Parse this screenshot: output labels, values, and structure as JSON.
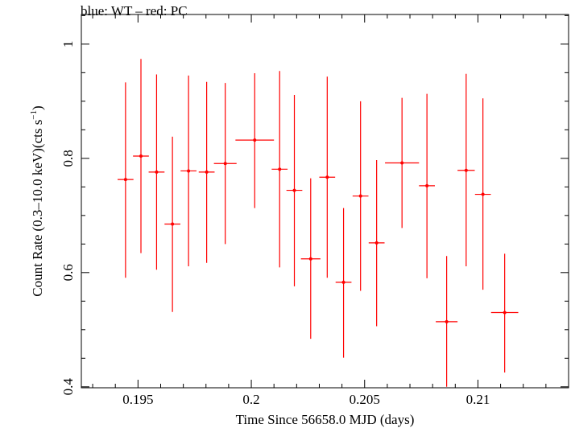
{
  "chart_data": {
    "type": "scatter",
    "title": "blue: WT – red: PC",
    "xlabel": "Time Since 56658.0 MJD (days)",
    "ylabel_main": "Count Rate (0.3–10.0 keV)(cts s",
    "ylabel_exp": "−1",
    "ylabel_tail": ")",
    "xlim": [
      0.1925,
      0.214
    ],
    "ylim": [
      0.3983,
      1.0519
    ],
    "x_major_ticks": [
      0.195,
      0.2,
      0.205,
      0.21
    ],
    "x_tick_labels": [
      "0.195",
      "0.2",
      "0.205",
      "0.21"
    ],
    "x_minor_step": 0.001,
    "y_major_ticks": [
      0.4,
      0.6,
      0.8,
      1.0
    ],
    "y_tick_labels": [
      "0.4",
      "0.6",
      "0.8",
      "1"
    ],
    "y_minor_step": 0.05,
    "grid": false,
    "series": [
      {
        "color": "#ff0000",
        "points": [
          {
            "x": 0.19445,
            "y": 0.763,
            "xerr": 0.00035,
            "ylo": 0.591,
            "yhi": 0.933
          },
          {
            "x": 0.19513,
            "y": 0.804,
            "xerr": 0.00035,
            "ylo": 0.634,
            "yhi": 0.974
          },
          {
            "x": 0.19582,
            "y": 0.776,
            "xerr": 0.00035,
            "ylo": 0.605,
            "yhi": 0.947
          },
          {
            "x": 0.19652,
            "y": 0.685,
            "xerr": 0.00035,
            "ylo": 0.531,
            "yhi": 0.838
          },
          {
            "x": 0.19723,
            "y": 0.778,
            "xerr": 0.00035,
            "ylo": 0.611,
            "yhi": 0.945
          },
          {
            "x": 0.19803,
            "y": 0.776,
            "xerr": 0.00035,
            "ylo": 0.617,
            "yhi": 0.934
          },
          {
            "x": 0.19885,
            "y": 0.791,
            "xerr": 0.0005,
            "ylo": 0.65,
            "yhi": 0.932
          },
          {
            "x": 0.20015,
            "y": 0.832,
            "xerr": 0.00085,
            "ylo": 0.713,
            "yhi": 0.949
          },
          {
            "x": 0.20125,
            "y": 0.781,
            "xerr": 0.00035,
            "ylo": 0.609,
            "yhi": 0.953
          },
          {
            "x": 0.2019,
            "y": 0.744,
            "xerr": 0.00035,
            "ylo": 0.576,
            "yhi": 0.911
          },
          {
            "x": 0.20262,
            "y": 0.624,
            "xerr": 0.00043,
            "ylo": 0.484,
            "yhi": 0.765
          },
          {
            "x": 0.20335,
            "y": 0.767,
            "xerr": 0.00035,
            "ylo": 0.591,
            "yhi": 0.943
          },
          {
            "x": 0.20407,
            "y": 0.583,
            "xerr": 0.00035,
            "ylo": 0.451,
            "yhi": 0.713
          },
          {
            "x": 0.20482,
            "y": 0.734,
            "xerr": 0.00035,
            "ylo": 0.568,
            "yhi": 0.9
          },
          {
            "x": 0.20553,
            "y": 0.652,
            "xerr": 0.00035,
            "ylo": 0.506,
            "yhi": 0.797
          },
          {
            "x": 0.20665,
            "y": 0.792,
            "xerr": 0.00075,
            "ylo": 0.678,
            "yhi": 0.906
          },
          {
            "x": 0.20775,
            "y": 0.752,
            "xerr": 0.00035,
            "ylo": 0.59,
            "yhi": 0.913
          },
          {
            "x": 0.20862,
            "y": 0.514,
            "xerr": 0.00048,
            "ylo": 0.4,
            "yhi": 0.629
          },
          {
            "x": 0.20948,
            "y": 0.779,
            "xerr": 0.00038,
            "ylo": 0.611,
            "yhi": 0.948
          },
          {
            "x": 0.21022,
            "y": 0.737,
            "xerr": 0.00035,
            "ylo": 0.57,
            "yhi": 0.905
          },
          {
            "x": 0.21118,
            "y": 0.53,
            "xerr": 0.0006,
            "ylo": 0.425,
            "yhi": 0.633
          }
        ]
      }
    ]
  }
}
